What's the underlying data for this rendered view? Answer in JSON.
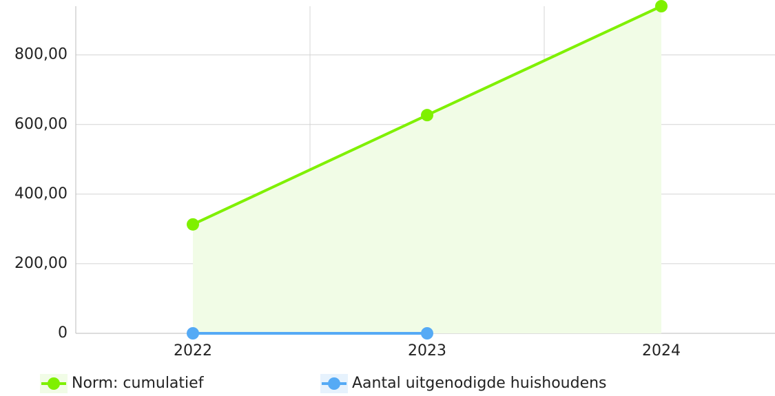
{
  "chart_data": {
    "type": "line",
    "categories": [
      "2022",
      "2023",
      "2024"
    ],
    "series": [
      {
        "name": "Norm: cumulatief",
        "color": "#7ff000",
        "fill": "#f1fce6",
        "values": [
          313,
          627,
          940
        ]
      },
      {
        "name": "Aantal uitgenodigde huishoudens",
        "color": "#55aaf5",
        "values": [
          0,
          0,
          null
        ]
      }
    ],
    "ylim": [
      0,
      940
    ],
    "yticks": [
      0,
      {
        "value": 200,
        "label": "200,00"
      },
      {
        "value": 400,
        "label": "400,00"
      },
      {
        "value": 600,
        "label": "600,00"
      },
      {
        "value": 800,
        "label": "800,00"
      }
    ],
    "grid": true
  }
}
